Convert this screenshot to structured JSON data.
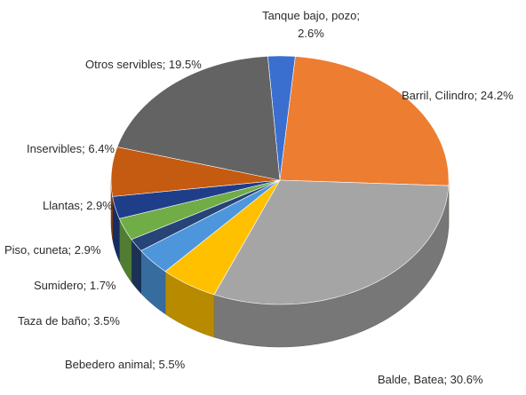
{
  "chart_data": {
    "type": "pie",
    "style": "3d",
    "legend": "none",
    "slices": [
      {
        "label": "Tanque bajo, pozo; 2.6%",
        "value": 2.6,
        "color": "#3a6fd0"
      },
      {
        "label": "Barril, Cilindro; 24.2%",
        "value": 24.2,
        "color": "#ed7d31"
      },
      {
        "label": "Balde, Batea; 30.6%",
        "value": 30.6,
        "color": "#a5a5a5"
      },
      {
        "label": "Bebedero animal; 5.5%",
        "value": 5.5,
        "color": "#ffc000"
      },
      {
        "label": "Taza de baño; 3.5%",
        "value": 3.5,
        "color": "#4d96db"
      },
      {
        "label": "Sumidero; 1.7%",
        "value": 1.7,
        "color": "#264478"
      },
      {
        "label": "Piso, cuneta; 2.9%",
        "value": 2.9,
        "color": "#70ad47"
      },
      {
        "label": "Llantas; 2.9%",
        "value": 2.9,
        "color": "#1f3e8a"
      },
      {
        "label": "Inservibles; 6.4%",
        "value": 6.4,
        "color": "#c55a11"
      },
      {
        "label": "Otros servibles; 19.5%",
        "value": 19.5,
        "color": "#636363"
      }
    ],
    "extra_color": "#a8860c"
  }
}
